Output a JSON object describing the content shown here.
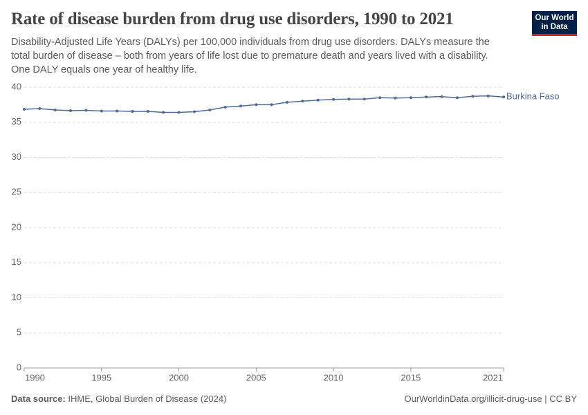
{
  "chart_data": {
    "type": "line",
    "title": "Rate of disease burden from drug use disorders, 1990 to 2021",
    "subtitle": "Disability-Adjusted Life Years (DALYs) per 100,000 individuals from drug use disorders. DALYs measure the total burden of disease – both from years of life lost due to premature death and years lived with a disability. One DALY equals one year of healthy life.",
    "logo": [
      "Our World",
      "in Data"
    ],
    "source_label": "Data source:",
    "source": "IHME, Global Burden of Disease (2024)",
    "footer_right": "OurWorldinData.org/illicit-drug-use | CC BY",
    "x": [
      1990,
      1991,
      1992,
      1993,
      1994,
      1995,
      1996,
      1997,
      1998,
      1999,
      2000,
      2001,
      2002,
      2003,
      2004,
      2005,
      2006,
      2007,
      2008,
      2009,
      2010,
      2011,
      2012,
      2013,
      2014,
      2015,
      2016,
      2017,
      2018,
      2019,
      2020,
      2021
    ],
    "series": [
      {
        "name": "Burkina Faso",
        "color": "#4c6a9c",
        "values": [
          36.85,
          36.95,
          36.75,
          36.65,
          36.7,
          36.6,
          36.6,
          36.55,
          36.55,
          36.4,
          36.4,
          36.5,
          36.75,
          37.15,
          37.3,
          37.5,
          37.5,
          37.85,
          38.0,
          38.15,
          38.25,
          38.3,
          38.3,
          38.5,
          38.45,
          38.5,
          38.6,
          38.65,
          38.5,
          38.7,
          38.75,
          38.6
        ]
      }
    ],
    "xlim": [
      1990,
      2021
    ],
    "xticks": [
      1990,
      1995,
      2000,
      2005,
      2010,
      2015,
      2021
    ],
    "ylim": [
      0,
      40
    ],
    "yticks": [
      0,
      5,
      10,
      15,
      20,
      25,
      30,
      35,
      40
    ],
    "grid": true
  }
}
